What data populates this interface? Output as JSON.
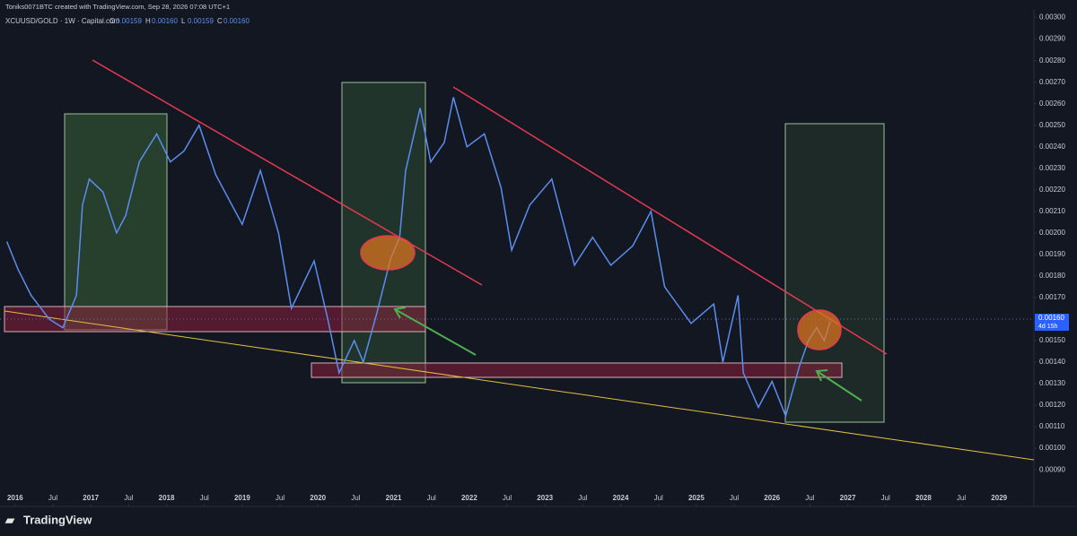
{
  "header": {
    "text": "Toniks0071BTC created with TradingView.com, Sep 28, 2026 07:08 UTC+1"
  },
  "legend": {
    "symbol": "XCUUSD/GOLD · 1W · Capital.com",
    "ohlc": [
      {
        "label": "O",
        "value": "0.00159"
      },
      {
        "label": "H",
        "value": "0.00160"
      },
      {
        "label": "L",
        "value": "0.00159"
      },
      {
        "label": "C",
        "value": "0.00160"
      }
    ]
  },
  "last_price": {
    "label": "0.00160",
    "countdown": "4d 15h"
  },
  "footer": {
    "brand": "TradingView"
  },
  "chart_data": {
    "type": "line",
    "color": "#5b8def",
    "grid": false,
    "x": [
      2015.89,
      2016.04,
      2016.21,
      2016.45,
      2016.63,
      2016.81,
      2016.89,
      2016.98,
      2017.16,
      2017.34,
      2017.46,
      2017.64,
      2017.87,
      2018.05,
      2018.23,
      2018.43,
      2018.65,
      2019.0,
      2019.24,
      2019.48,
      2019.65,
      2019.95,
      2020.13,
      2020.28,
      2020.48,
      2020.6,
      2020.78,
      2020.96,
      2021.08,
      2021.16,
      2021.35,
      2021.49,
      2021.67,
      2021.79,
      2021.97,
      2022.2,
      2022.42,
      2022.56,
      2022.8,
      2023.09,
      2023.39,
      2023.63,
      2023.87,
      2024.16,
      2024.4,
      2024.58,
      2024.93,
      2025.23,
      2025.35,
      2025.55,
      2025.62,
      2025.82,
      2026.0,
      2026.18,
      2026.36,
      2026.48,
      2026.59,
      2026.69,
      2026.77
    ],
    "values": [
      0.00196,
      0.00183,
      0.00171,
      0.0016,
      0.00156,
      0.00171,
      0.00213,
      0.00225,
      0.00219,
      0.002,
      0.00208,
      0.00233,
      0.00246,
      0.00233,
      0.00238,
      0.0025,
      0.00227,
      0.00204,
      0.00229,
      0.002,
      0.00165,
      0.00187,
      0.0016,
      0.00135,
      0.0015,
      0.0014,
      0.00163,
      0.00188,
      0.00198,
      0.00229,
      0.00258,
      0.00233,
      0.00242,
      0.00263,
      0.0024,
      0.00246,
      0.00221,
      0.00192,
      0.00213,
      0.00225,
      0.00185,
      0.00198,
      0.00185,
      0.00194,
      0.0021,
      0.00175,
      0.00158,
      0.00167,
      0.0014,
      0.00171,
      0.00135,
      0.00119,
      0.00131,
      0.00115,
      0.00138,
      0.0015,
      0.00156,
      0.0015,
      0.00159
    ],
    "xlim": [
      2015.8,
      2029.46
    ],
    "xticks": [
      2016,
      {
        "value": 2016.5,
        "label": "Jul"
      },
      2017,
      {
        "value": 2017.5,
        "label": "Jul"
      },
      2018,
      {
        "value": 2018.5,
        "label": "Jul"
      },
      2019,
      {
        "value": 2019.5,
        "label": "Jul"
      },
      2020,
      {
        "value": 2020.5,
        "label": "Jul"
      },
      2021,
      {
        "value": 2021.5,
        "label": "Jul"
      },
      2022,
      {
        "value": 2022.5,
        "label": "Jul"
      },
      2023,
      {
        "value": 2023.5,
        "label": "Jul"
      },
      2024,
      {
        "value": 2024.5,
        "label": "Jul"
      },
      2025,
      {
        "value": 2025.5,
        "label": "Jul"
      },
      2026,
      {
        "value": 2026.5,
        "label": "Jul"
      },
      2027,
      {
        "value": 2027.5,
        "label": "Jul"
      },
      2028,
      {
        "value": 2028.5,
        "label": "Jul"
      },
      2029
    ],
    "ylim": [
      0.00073,
      0.00304
    ],
    "yticks": [
      {
        "value": 0.003,
        "label": "0.00300"
      },
      {
        "value": 0.0029,
        "label": "0.00290"
      },
      {
        "value": 0.0028,
        "label": "0.00280"
      },
      {
        "value": 0.0027,
        "label": "0.00270"
      },
      {
        "value": 0.0026,
        "label": "0.00260"
      },
      {
        "value": 0.0025,
        "label": "0.00250"
      },
      {
        "value": 0.0024,
        "label": "0.00240"
      },
      {
        "value": 0.0023,
        "label": "0.00230"
      },
      {
        "value": 0.0022,
        "label": "0.00220"
      },
      {
        "value": 0.0021,
        "label": "0.00210"
      },
      {
        "value": 0.002,
        "label": "0.00200"
      },
      {
        "value": 0.0019,
        "label": "0.00190"
      },
      {
        "value": 0.0018,
        "label": "0.00180"
      },
      {
        "value": 0.0017,
        "label": "0.00170"
      },
      {
        "value": 0.0015,
        "label": "0.00150"
      },
      {
        "value": 0.0014,
        "label": "0.00140"
      },
      {
        "value": 0.0013,
        "label": "0.00130"
      },
      {
        "value": 0.0012,
        "label": "0.00120"
      },
      {
        "value": 0.0011,
        "label": "0.00110"
      },
      {
        "value": 0.001,
        "label": "0.00100"
      },
      {
        "value": 0.0009,
        "label": "0.00090"
      }
    ]
  }
}
